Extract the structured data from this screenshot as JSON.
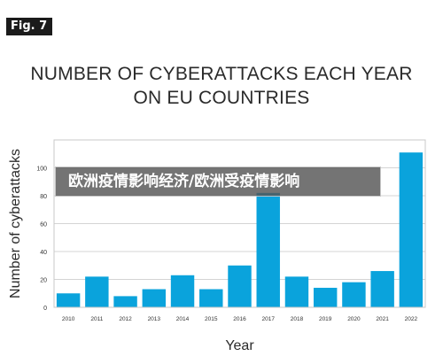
{
  "figure_label": "Fig. 7",
  "overlay_banner": "欧洲疫情影响经济/欧洲受疫情影响",
  "colors": {
    "bar": "#0aa3dc",
    "grid": "#d4d4d4",
    "frame": "#c8c8c8",
    "text": "#333333"
  },
  "chart_data": {
    "type": "bar",
    "title_lines": [
      "NUMBER OF CYBERATTACKS EACH YEAR",
      "ON EU COUNTRIES"
    ],
    "xlabel": "Year",
    "ylabel": "Number of cyberattacks",
    "categories": [
      "2010",
      "2011",
      "2012",
      "2013",
      "2014",
      "2015",
      "2016",
      "2017",
      "2018",
      "2019",
      "2020",
      "2021",
      "2022"
    ],
    "values": [
      10,
      22,
      8,
      13,
      23,
      13,
      30,
      82,
      22,
      14,
      18,
      26,
      111
    ],
    "ylim": [
      0,
      120
    ],
    "yticks": [
      0,
      20,
      40,
      60,
      80,
      100
    ],
    "grid": true,
    "legend": "none"
  }
}
